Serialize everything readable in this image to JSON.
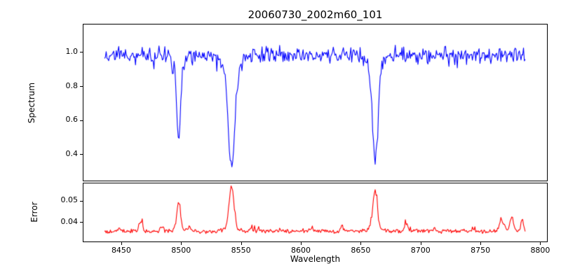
{
  "chart_data": [
    {
      "type": "line",
      "name": "spectrum",
      "title": "20060730_2002m60_101",
      "ylabel": "Spectrum",
      "line_color": "#0000ff",
      "xlim": [
        8418.4,
        8805.6
      ],
      "ylim": [
        0.248,
        1.164
      ],
      "yticks": [
        0.4,
        0.6,
        0.8,
        1.0
      ],
      "ytick_labels": [
        "0.4",
        "0.6",
        "0.8",
        "1.0"
      ],
      "x_start": 8436,
      "x_end": 8788,
      "x_step": 0.7,
      "baseline": 0.985,
      "noise_sigma": 0.023,
      "spike_prob": 0.06,
      "spike_amp": -0.06,
      "seed": 20060730,
      "absorption_lines": [
        {
          "center": 8498.0,
          "depth": 0.4,
          "width": 1.6,
          "wing_depth": 0.075,
          "wing_width": 4.0,
          "min_value": 0.51
        },
        {
          "center": 8542.1,
          "depth": 0.535,
          "width": 2.6,
          "wing_depth": 0.12,
          "wing_width": 6.0,
          "min_value": 0.33
        },
        {
          "center": 8662.1,
          "depth": 0.515,
          "width": 2.2,
          "wing_depth": 0.1,
          "wing_width": 5.0,
          "min_value": 0.37
        }
      ]
    },
    {
      "type": "line",
      "name": "error",
      "ylabel": "Error",
      "xlabel": "Wavelength",
      "line_color": "#ff0000",
      "xlim": [
        8418.4,
        8805.6
      ],
      "ylim": [
        0.0312,
        0.0582
      ],
      "yticks": [
        0.04,
        0.05
      ],
      "ytick_labels": [
        "0.04",
        "0.05"
      ],
      "xticks": [
        8450,
        8500,
        8550,
        8600,
        8650,
        8700,
        8750,
        8800
      ],
      "xtick_labels": [
        "8450",
        "8500",
        "8550",
        "8600",
        "8650",
        "8700",
        "8750",
        "8800"
      ],
      "x_start": 8436,
      "x_end": 8788,
      "x_step": 0.7,
      "baseline": 0.036,
      "noise_sigma": 0.0005,
      "spike_prob": 0.08,
      "spike_amp": 0.0025,
      "seed": 101,
      "peaks": [
        {
          "center": 8426,
          "amp": 0.0018,
          "width": 1.0
        },
        {
          "center": 8430,
          "amp": 0.0042,
          "width": 1.2
        },
        {
          "center": 8448,
          "amp": 0.0016,
          "width": 1.0
        },
        {
          "center": 8466,
          "amp": 0.0046,
          "width": 1.3
        },
        {
          "center": 8484,
          "amp": 0.0018,
          "width": 1.0
        },
        {
          "center": 8498,
          "amp": 0.0125,
          "width": 1.5
        },
        {
          "center": 8498,
          "amp": 0.0015,
          "width": 4.0
        },
        {
          "center": 8507,
          "amp": 0.0016,
          "width": 1.0
        },
        {
          "center": 8542,
          "amp": 0.019,
          "width": 1.9
        },
        {
          "center": 8542,
          "amp": 0.002,
          "width": 5.0
        },
        {
          "center": 8558,
          "amp": 0.0012,
          "width": 1.0
        },
        {
          "center": 8610,
          "amp": 0.0012,
          "width": 1.0
        },
        {
          "center": 8634,
          "amp": 0.0012,
          "width": 1.0
        },
        {
          "center": 8662,
          "amp": 0.017,
          "width": 1.8
        },
        {
          "center": 8662,
          "amp": 0.002,
          "width": 5.0
        },
        {
          "center": 8688,
          "amp": 0.0036,
          "width": 1.3
        },
        {
          "center": 8712,
          "amp": 0.0012,
          "width": 1.0
        },
        {
          "center": 8744,
          "amp": 0.0014,
          "width": 1.0
        },
        {
          "center": 8768,
          "amp": 0.005,
          "width": 2.0
        },
        {
          "center": 8776,
          "amp": 0.0068,
          "width": 1.5
        },
        {
          "center": 8785,
          "amp": 0.0055,
          "width": 1.0
        },
        {
          "center": 8789,
          "amp": -0.002,
          "width": 1.0
        }
      ]
    }
  ]
}
